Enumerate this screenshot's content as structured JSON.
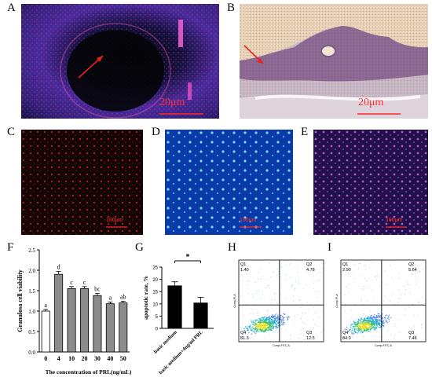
{
  "panel_labels": {
    "A": "A",
    "B": "B",
    "C": "C",
    "D": "D",
    "E": "E",
    "F": "F",
    "G": "G",
    "H": "H",
    "I": "I"
  },
  "scale_bars": {
    "A": "20μm",
    "B": "20μm",
    "C": "100μm",
    "D": "100μm",
    "E": "100μm"
  },
  "colors": {
    "bar_gray": "#8c8c8c",
    "bar_white": "#ffffff",
    "bar_black": "#000000",
    "flow_q_line": "#000000",
    "scale_red": "#ff2a2a",
    "arrow_red": "#e8241c"
  },
  "chart_data": [
    {
      "panel": "F",
      "type": "bar",
      "ylabel": "Granulosa cell viability",
      "xlabel": "The concentration of PRL(ng/mL)",
      "categories": [
        "0",
        "4",
        "10",
        "20",
        "30",
        "40",
        "50"
      ],
      "values": [
        1.0,
        1.9,
        1.55,
        1.55,
        1.38,
        1.18,
        1.2
      ],
      "errors": [
        0.04,
        0.07,
        0.05,
        0.05,
        0.05,
        0.04,
        0.04
      ],
      "letters": [
        "a",
        "d",
        "c",
        "c",
        "bc",
        "a",
        "ab"
      ],
      "ylim": [
        0,
        2.5
      ],
      "yticks": [
        "0.0",
        "0.5",
        "1.0",
        "1.5",
        "2.0",
        "2.5"
      ]
    },
    {
      "panel": "G",
      "type": "bar",
      "ylabel": "apoptotic rate, %",
      "categories": [
        "basic medium",
        "basic medium+4ng/ml PRL"
      ],
      "values": [
        17.5,
        10.5
      ],
      "errors": [
        1.5,
        2.2
      ],
      "significance": "*",
      "ylim": [
        0,
        25
      ],
      "yticks": [
        "0",
        "5",
        "10",
        "15",
        "20",
        "25"
      ]
    },
    {
      "panel": "H",
      "type": "scatter",
      "quadrants": {
        "Q1": "1.40",
        "Q2": "4.78",
        "Q3": "12.5",
        "Q4": "81.3"
      },
      "xlabel": "Comp-FITC-A",
      "ylabel": "Comp-PI-A"
    },
    {
      "panel": "I",
      "type": "scatter",
      "quadrants": {
        "Q1": "2.90",
        "Q2": "5.64",
        "Q3": "7.46",
        "Q4": "84.0"
      },
      "xlabel": "Comp-FITC-A",
      "ylabel": "Comp-PI-A"
    }
  ]
}
